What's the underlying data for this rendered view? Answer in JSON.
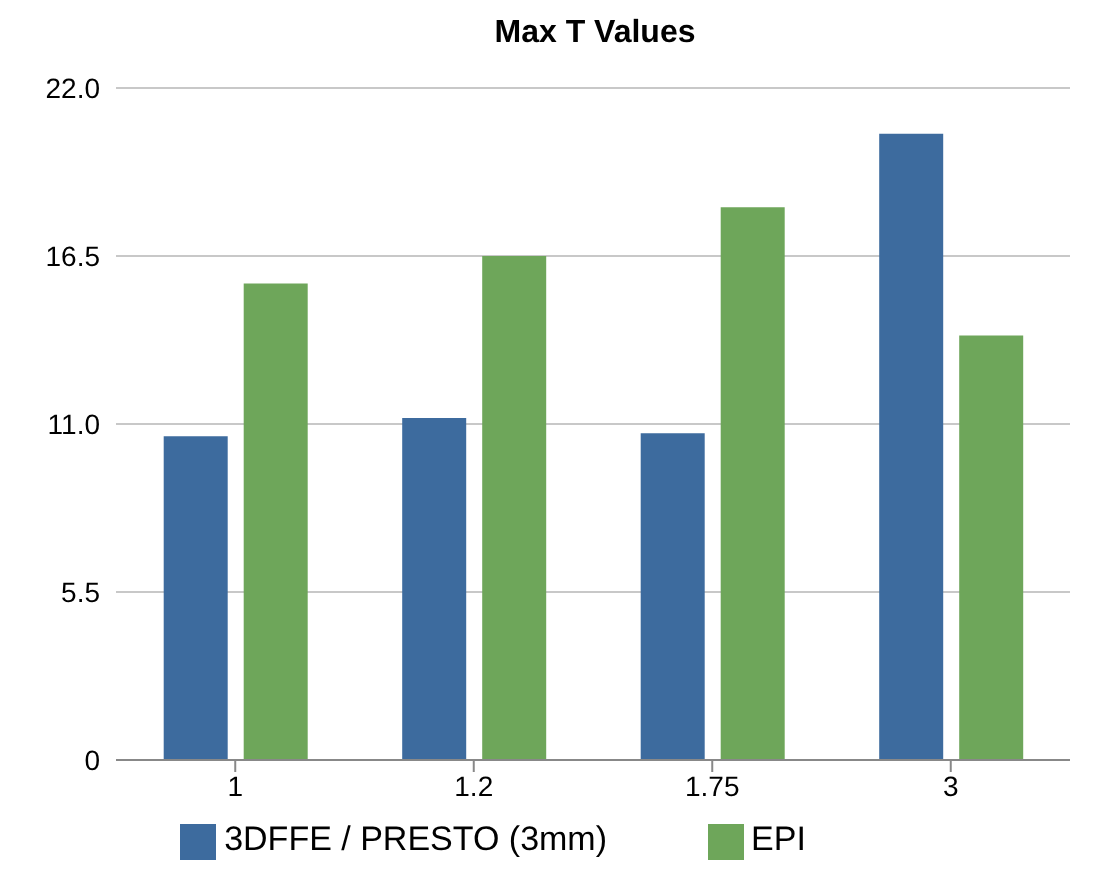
{
  "chart_data": {
    "type": "bar",
    "title": "Max T Values",
    "categories": [
      "1",
      "1.2",
      "1.75",
      "3"
    ],
    "series": [
      {
        "name": "3DFFE / PRESTO (3mm)",
        "color": "#3d6b9e",
        "values": [
          10.6,
          11.2,
          10.7,
          20.5
        ]
      },
      {
        "name": "EPI",
        "color": "#6ea65a",
        "values": [
          15.6,
          16.5,
          18.1,
          13.9
        ]
      }
    ],
    "ylim": [
      0,
      22
    ],
    "yticks": [
      {
        "value": 0,
        "label": "0"
      },
      {
        "value": 5.5,
        "label": "5.5"
      },
      {
        "value": 11,
        "label": "11.0"
      },
      {
        "value": 16.5,
        "label": "16.5"
      },
      {
        "value": 22,
        "label": "22.0"
      }
    ],
    "grid": "y",
    "legend": "bottom"
  }
}
